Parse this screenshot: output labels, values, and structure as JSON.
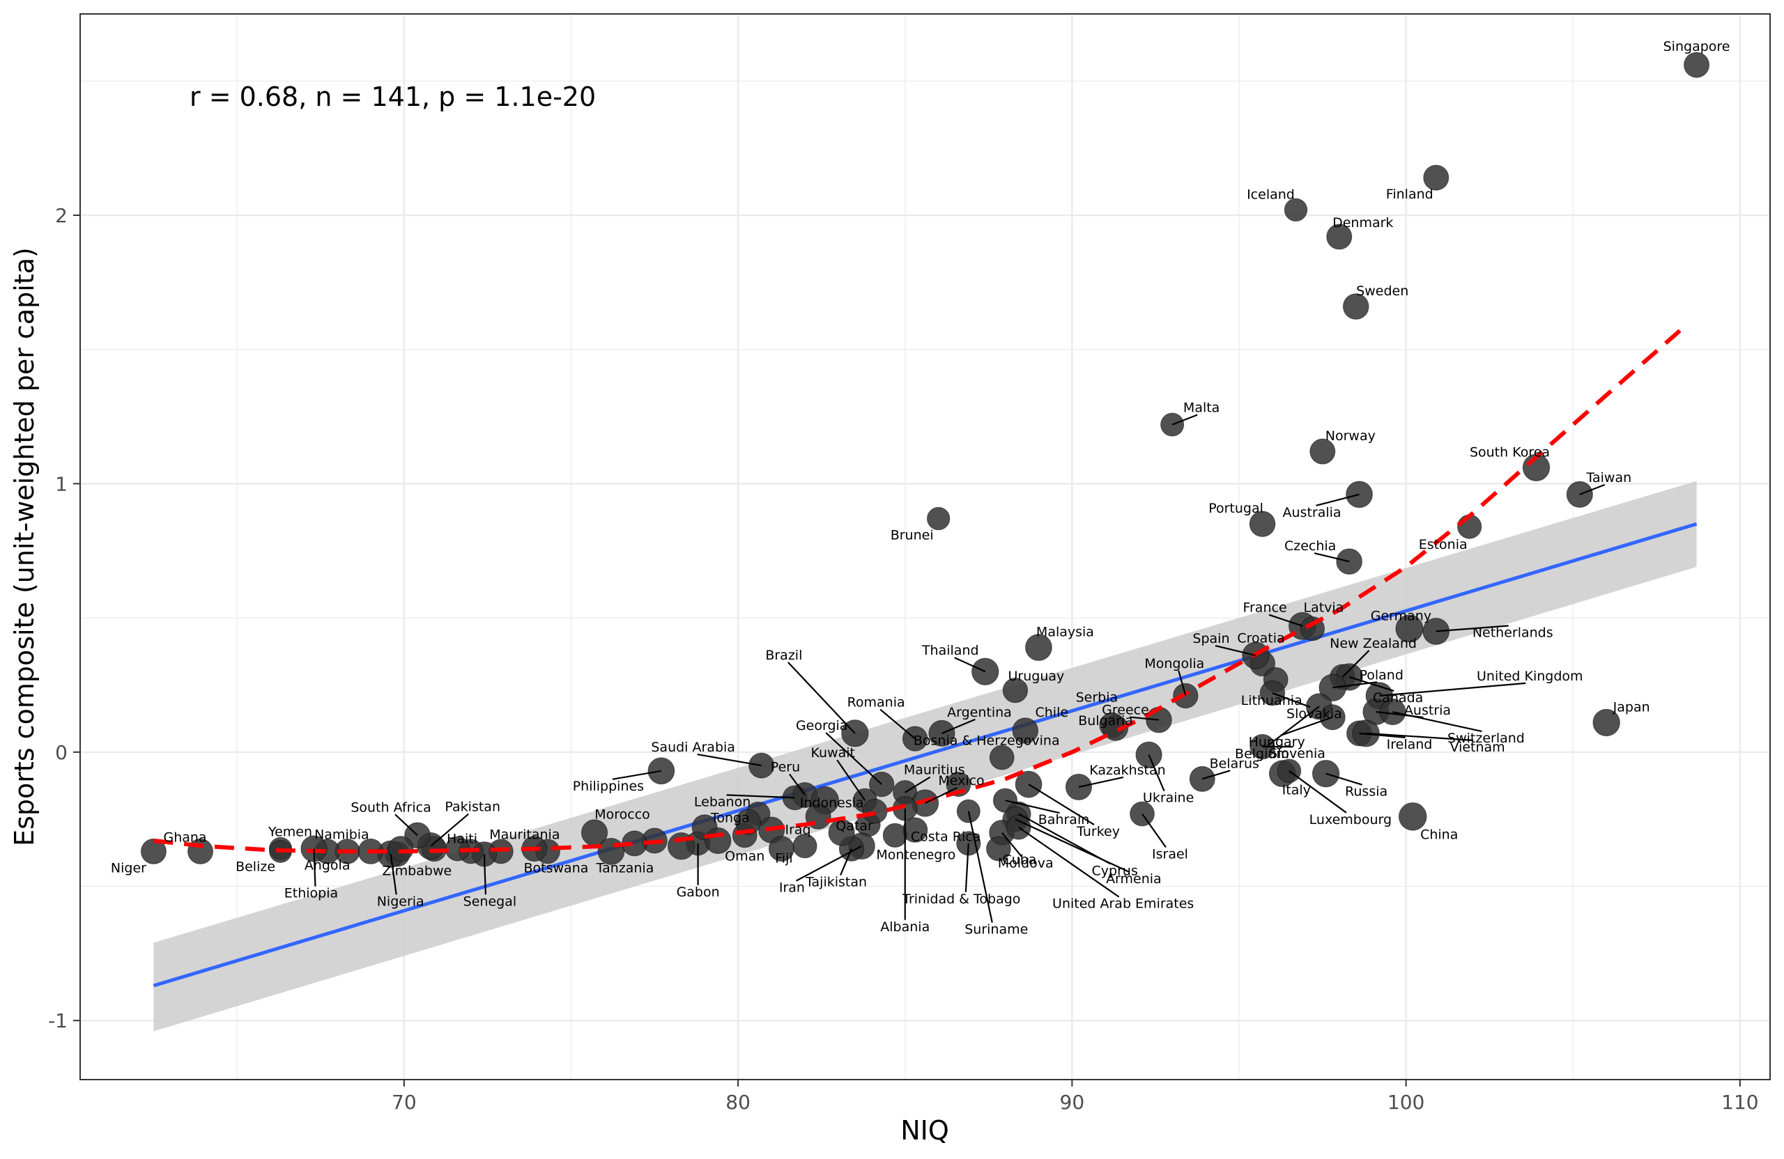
{
  "chart_data": {
    "type": "scatter",
    "title": "",
    "xlabel": "NIQ",
    "ylabel": "Esports composite (unit-weighted per capita)",
    "annotation": "r = 0.68, n = 141, p = 1.1e-20",
    "xlim": [
      60.3,
      110.9
    ],
    "ylim": [
      -1.22,
      2.75
    ],
    "xticks": [
      70,
      80,
      90,
      100,
      110
    ],
    "yticks": [
      -1,
      0,
      1,
      2
    ],
    "xtick_labels": [
      "70",
      "80",
      "90",
      "100",
      "110"
    ],
    "ytick_labels": [
      "-1",
      "0",
      "1",
      "2"
    ],
    "grid": true,
    "colors": {
      "points": "#333333",
      "fit": "#3366ff",
      "band": "#cccccc",
      "loess": "#ff0000",
      "grid": "#ebebeb"
    },
    "fit_line": {
      "x": [
        62.5,
        108.7
      ],
      "y": [
        -0.87,
        0.85
      ]
    },
    "confidence_band": {
      "x": [
        62.5,
        108.7
      ],
      "lower": [
        -1.04,
        0.69
      ],
      "upper": [
        -0.71,
        1.01
      ]
    },
    "loess_curve": {
      "x": [
        62.5,
        64,
        66,
        68,
        70,
        72,
        74,
        76,
        78,
        80,
        82,
        84,
        86,
        88,
        90,
        92,
        94,
        96,
        98,
        100,
        102,
        104,
        106,
        108.2
      ],
      "y": [
        -0.33,
        -0.35,
        -0.365,
        -0.37,
        -0.37,
        -0.365,
        -0.36,
        -0.35,
        -0.33,
        -0.3,
        -0.27,
        -0.23,
        -0.17,
        -0.1,
        0.0,
        0.12,
        0.26,
        0.4,
        0.53,
        0.69,
        0.89,
        1.11,
        1.33,
        1.57
      ]
    },
    "points": [
      {
        "name": "Singapore",
        "x": 108.7,
        "y": 2.56,
        "size": 1.0
      },
      {
        "name": "Finland",
        "x": 100.9,
        "y": 2.14,
        "size": 1.0
      },
      {
        "name": "Iceland",
        "x": 96.7,
        "y": 2.02,
        "size": 0.7
      },
      {
        "name": "Denmark",
        "x": 98.0,
        "y": 1.92,
        "size": 1.0
      },
      {
        "name": "Sweden",
        "x": 98.5,
        "y": 1.66,
        "size": 1.05
      },
      {
        "name": "Malta",
        "x": 93.0,
        "y": 1.22,
        "size": 0.75
      },
      {
        "name": "Norway",
        "x": 97.5,
        "y": 1.12,
        "size": 1.0
      },
      {
        "name": "South Korea",
        "x": 103.9,
        "y": 1.06,
        "size": 1.2
      },
      {
        "name": "Taiwan",
        "x": 105.2,
        "y": 0.96,
        "size": 1.1
      },
      {
        "name": "Australia",
        "x": 98.6,
        "y": 0.96,
        "size": 1.15
      },
      {
        "name": "Brunei",
        "x": 86.0,
        "y": 0.87,
        "size": 0.7
      },
      {
        "name": "Portugal",
        "x": 95.7,
        "y": 0.85,
        "size": 1.05
      },
      {
        "name": "Estonia",
        "x": 101.9,
        "y": 0.84,
        "size": 0.85
      },
      {
        "name": "Czechia",
        "x": 98.3,
        "y": 0.71,
        "size": 1.05
      },
      {
        "name": "France",
        "x": 96.9,
        "y": 0.47,
        "size": 1.25
      },
      {
        "name": "Latvia",
        "x": 97.2,
        "y": 0.46,
        "size": 0.85
      },
      {
        "name": "Netherlands",
        "x": 100.9,
        "y": 0.45,
        "size": 1.15
      },
      {
        "name": "Germany",
        "x": 100.1,
        "y": 0.46,
        "size": 1.25
      },
      {
        "name": "Malaysia",
        "x": 89.0,
        "y": 0.39,
        "size": 1.15
      },
      {
        "name": "Thailand",
        "x": 87.4,
        "y": 0.3,
        "size": 1.2
      },
      {
        "name": "New Zealand",
        "x": 98.1,
        "y": 0.28,
        "size": 1.0
      },
      {
        "name": "Croatia",
        "x": 95.7,
        "y": 0.33,
        "size": 1.0
      },
      {
        "name": "Canada",
        "x": 98.3,
        "y": 0.28,
        "size": 1.2
      },
      {
        "name": "Lithuania",
        "x": 96.1,
        "y": 0.27,
        "size": 0.9
      },
      {
        "name": "Spain",
        "x": 95.5,
        "y": 0.36,
        "size": 1.2
      },
      {
        "name": "Uruguay",
        "x": 88.3,
        "y": 0.23,
        "size": 0.95
      },
      {
        "name": "Poland",
        "x": 97.8,
        "y": 0.24,
        "size": 1.2
      },
      {
        "name": "United Kingdom",
        "x": 99.2,
        "y": 0.21,
        "size": 1.2
      },
      {
        "name": "Mongolia",
        "x": 93.4,
        "y": 0.21,
        "size": 0.95
      },
      {
        "name": "Slovakia",
        "x": 96.0,
        "y": 0.22,
        "size": 0.95
      },
      {
        "name": "Belgium",
        "x": 97.4,
        "y": 0.17,
        "size": 1.1
      },
      {
        "name": "Austria",
        "x": 99.1,
        "y": 0.15,
        "size": 1.1
      },
      {
        "name": "Hungary",
        "x": 97.8,
        "y": 0.13,
        "size": 1.0
      },
      {
        "name": "Switzerland",
        "x": 99.6,
        "y": 0.15,
        "size": 1.1
      },
      {
        "name": "Greece",
        "x": 92.6,
        "y": 0.12,
        "size": 1.05
      },
      {
        "name": "Japan",
        "x": 106.0,
        "y": 0.11,
        "size": 1.2
      },
      {
        "name": "Serbia",
        "x": 91.2,
        "y": 0.1,
        "size": 1.0
      },
      {
        "name": "Chile",
        "x": 88.6,
        "y": 0.08,
        "size": 1.05
      },
      {
        "name": "Ireland",
        "x": 98.6,
        "y": 0.07,
        "size": 1.0
      },
      {
        "name": "Brazil",
        "x": 83.5,
        "y": 0.07,
        "size": 1.2
      },
      {
        "name": "Argentina",
        "x": 86.1,
        "y": 0.07,
        "size": 1.1
      },
      {
        "name": "Vietnam",
        "x": 98.8,
        "y": 0.07,
        "size": 1.2
      },
      {
        "name": "Bulgaria",
        "x": 91.3,
        "y": 0.09,
        "size": 1.0
      },
      {
        "name": "Romania",
        "x": 85.3,
        "y": 0.05,
        "size": 0.95
      },
      {
        "name": "Slovenia",
        "x": 95.7,
        "y": 0.02,
        "size": 0.95
      },
      {
        "name": "Bosnia & Herzegovina",
        "x": 87.9,
        "y": -0.02,
        "size": 0.9
      },
      {
        "name": "Ukraine",
        "x": 92.3,
        "y": -0.01,
        "size": 1.1
      },
      {
        "name": "Russia",
        "x": 97.6,
        "y": -0.08,
        "size": 1.2
      },
      {
        "name": "Italy",
        "x": 96.3,
        "y": -0.08,
        "size": 1.15
      },
      {
        "name": "Luxembourg",
        "x": 96.5,
        "y": -0.07,
        "size": 0.8
      },
      {
        "name": "Belarus",
        "x": 93.9,
        "y": -0.1,
        "size": 1.0
      },
      {
        "name": "Saudi Arabia",
        "x": 80.7,
        "y": -0.05,
        "size": 1.0
      },
      {
        "name": "Philippines",
        "x": 77.7,
        "y": -0.07,
        "size": 1.15
      },
      {
        "name": "Peru",
        "x": 82.0,
        "y": -0.16,
        "size": 1.0
      },
      {
        "name": "Kazakhstan",
        "x": 90.2,
        "y": -0.13,
        "size": 1.1
      },
      {
        "name": "Georgia",
        "x": 84.3,
        "y": -0.12,
        "size": 0.95
      },
      {
        "name": "Kuwait",
        "x": 83.8,
        "y": -0.18,
        "size": 0.85
      },
      {
        "name": "Mauritius",
        "x": 85.0,
        "y": -0.15,
        "size": 0.85
      },
      {
        "name": "Lebanon",
        "x": 81.7,
        "y": -0.17,
        "size": 0.9
      },
      {
        "name": "Indonesia",
        "x": 82.6,
        "y": -0.18,
        "size": 1.3
      },
      {
        "name": "Mexico",
        "x": 85.6,
        "y": -0.19,
        "size": 1.2
      },
      {
        "name": "Bahrain",
        "x": 88.0,
        "y": -0.18,
        "size": 0.85
      },
      {
        "name": "Turkey",
        "x": 88.7,
        "y": -0.12,
        "size": 1.15
      },
      {
        "name": "Israel",
        "x": 92.1,
        "y": -0.23,
        "size": 0.9
      },
      {
        "name": "Cyprus",
        "x": 88.4,
        "y": -0.23,
        "size": 0.9
      },
      {
        "name": "Armenia",
        "x": 88.3,
        "y": -0.25,
        "size": 1.0
      },
      {
        "name": "Moldova",
        "x": 87.9,
        "y": -0.3,
        "size": 1.0
      },
      {
        "name": "China",
        "x": 100.2,
        "y": -0.24,
        "size": 1.3
      },
      {
        "name": "Tonga",
        "x": 80.6,
        "y": -0.23,
        "size": 0.85
      },
      {
        "name": "Iraq",
        "x": 81.0,
        "y": -0.29,
        "size": 1.1
      },
      {
        "name": "Qatar",
        "x": 83.9,
        "y": -0.27,
        "size": 0.85
      },
      {
        "name": "Costa Rica",
        "x": 85.3,
        "y": -0.29,
        "size": 0.95
      },
      {
        "name": "United Arab Emirates",
        "x": 88.4,
        "y": -0.28,
        "size": 0.9
      },
      {
        "name": "Cuba",
        "x": 87.8,
        "y": -0.36,
        "size": 0.9
      },
      {
        "name": "Trinidad & Tobago",
        "x": 86.9,
        "y": -0.34,
        "size": 0.85
      },
      {
        "name": "Suriname",
        "x": 86.9,
        "y": -0.22,
        "size": 0.75
      },
      {
        "name": "Montenegro",
        "x": 84.7,
        "y": -0.31,
        "size": 0.85
      },
      {
        "name": "Albania",
        "x": 85.0,
        "y": -0.21,
        "size": 0.9
      },
      {
        "name": "Iran",
        "x": 83.7,
        "y": -0.35,
        "size": 1.15
      },
      {
        "name": "Tajikistan",
        "x": 83.4,
        "y": -0.36,
        "size": 0.95
      },
      {
        "name": "Fiji",
        "x": 82.0,
        "y": -0.35,
        "size": 0.85
      },
      {
        "name": "Oman",
        "x": 80.2,
        "y": -0.31,
        "size": 0.9
      },
      {
        "name": "Gabon",
        "x": 78.8,
        "y": -0.34,
        "size": 0.85
      },
      {
        "name": "Morocco",
        "x": 75.7,
        "y": -0.3,
        "size": 1.1
      },
      {
        "name": "Tanzania",
        "x": 76.2,
        "y": -0.37,
        "size": 1.15
      },
      {
        "name": "Botswana",
        "x": 74.3,
        "y": -0.37,
        "size": 0.9
      },
      {
        "name": "Mauritania",
        "x": 72.9,
        "y": -0.37,
        "size": 0.9
      },
      {
        "name": "Senegal",
        "x": 72.4,
        "y": -0.38,
        "size": 0.95
      },
      {
        "name": "Haiti",
        "x": 70.9,
        "y": -0.36,
        "size": 1.0
      },
      {
        "name": "Pakistan",
        "x": 70.8,
        "y": -0.35,
        "size": 1.2
      },
      {
        "name": "South Africa",
        "x": 70.4,
        "y": -0.31,
        "size": 1.05
      },
      {
        "name": "Zimbabwe",
        "x": 69.8,
        "y": -0.38,
        "size": 0.95
      },
      {
        "name": "Nigeria",
        "x": 69.6,
        "y": -0.38,
        "size": 1.2
      },
      {
        "name": "Namibia",
        "x": 68.3,
        "y": -0.37,
        "size": 0.95
      },
      {
        "name": "Angola",
        "x": 67.7,
        "y": -0.37,
        "size": 0.95
      },
      {
        "name": "Ethiopia",
        "x": 67.3,
        "y": -0.36,
        "size": 1.1
      },
      {
        "name": "Yemen",
        "x": 66.3,
        "y": -0.36,
        "size": 0.7
      },
      {
        "name": "Belize",
        "x": 66.3,
        "y": -0.37,
        "size": 0.65
      },
      {
        "name": "Ghana",
        "x": 63.9,
        "y": -0.37,
        "size": 1.0
      },
      {
        "name": "Niger",
        "x": 62.5,
        "y": -0.37,
        "size": 1.0
      },
      {
        "name": "",
        "x": 79.0,
        "y": -0.28,
        "size": 1.0
      },
      {
        "name": "",
        "x": 79.4,
        "y": -0.33,
        "size": 1.1
      },
      {
        "name": "",
        "x": 80.3,
        "y": -0.26,
        "size": 1.0
      },
      {
        "name": "",
        "x": 81.3,
        "y": -0.36,
        "size": 1.0
      },
      {
        "name": "",
        "x": 82.4,
        "y": -0.24,
        "size": 1.0
      },
      {
        "name": "",
        "x": 83.1,
        "y": -0.3,
        "size": 1.1
      },
      {
        "name": "",
        "x": 84.1,
        "y": -0.22,
        "size": 0.9
      },
      {
        "name": "",
        "x": 78.3,
        "y": -0.35,
        "size": 1.2
      },
      {
        "name": "",
        "x": 77.5,
        "y": -0.33,
        "size": 1.0
      },
      {
        "name": "",
        "x": 76.9,
        "y": -0.34,
        "size": 1.0
      },
      {
        "name": "",
        "x": 86.6,
        "y": -0.12,
        "size": 0.9
      },
      {
        "name": "",
        "x": 73.9,
        "y": -0.36,
        "size": 1.0
      },
      {
        "name": "",
        "x": 72.0,
        "y": -0.37,
        "size": 0.9
      },
      {
        "name": "",
        "x": 71.6,
        "y": -0.36,
        "size": 0.9
      },
      {
        "name": "",
        "x": 69.9,
        "y": -0.36,
        "size": 1.0
      },
      {
        "name": "",
        "x": 69.0,
        "y": -0.37,
        "size": 1.0
      }
    ]
  }
}
